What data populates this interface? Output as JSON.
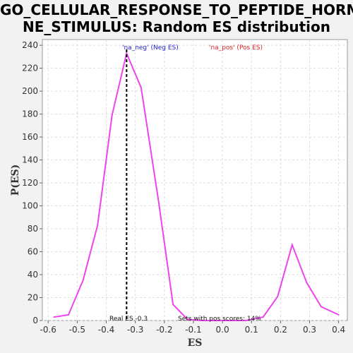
{
  "chart_data": {
    "type": "line",
    "title_line1": "GO_CELLULAR_RESPONSE_TO_PEPTIDE_HORMO",
    "title_line2": "NE_STIMULUS: Random ES distribution",
    "xlabel": "ES",
    "ylabel": "P(ES)",
    "xlim": [
      -0.62,
      0.43
    ],
    "ylim": [
      0,
      245
    ],
    "x_ticks": [
      -0.6,
      -0.5,
      -0.4,
      -0.3,
      -0.2,
      -0.1,
      0.0,
      0.1,
      0.2,
      0.3,
      0.4
    ],
    "x_tick_labels": [
      "-0.6",
      "-0.5",
      "-0.4",
      "-0.3",
      "-0.2",
      "-0.1",
      "0.0",
      "0.1",
      "0.2",
      "0.3",
      "0.4"
    ],
    "y_ticks": [
      0,
      20,
      40,
      60,
      80,
      100,
      120,
      140,
      160,
      180,
      200,
      220,
      240
    ],
    "y_tick_labels": [
      "0",
      "20",
      "40",
      "60",
      "80",
      "100",
      "120",
      "140",
      "160",
      "180",
      "200",
      "220",
      "240"
    ],
    "grid": true,
    "series": [
      {
        "color": "#ee44ee",
        "x": [
          -0.58,
          -0.53,
          -0.48,
          -0.43,
          -0.38,
          -0.33,
          -0.28,
          -0.22,
          -0.17,
          -0.12,
          -0.07,
          -0.02,
          0.03,
          0.08,
          0.14,
          0.19,
          0.24,
          0.29,
          0.34,
          0.4
        ],
        "y": [
          3,
          5,
          35,
          83,
          179,
          233,
          203,
          104,
          14,
          1,
          0,
          0,
          0,
          0,
          3,
          21,
          66,
          33,
          12,
          5
        ]
      }
    ],
    "real_es": -0.33,
    "annotations": {
      "neg_label": "'na_neg' (Neg ES)",
      "pos_label": "'na_pos' (Pos ES)",
      "real_es_label": "Real ES -0.3",
      "pos_scores_label": "Sets with pos scores: 14%"
    },
    "colors": {
      "neg_label": "#2222cc",
      "pos_label": "#dd2222",
      "line": "#ee44ee"
    }
  }
}
